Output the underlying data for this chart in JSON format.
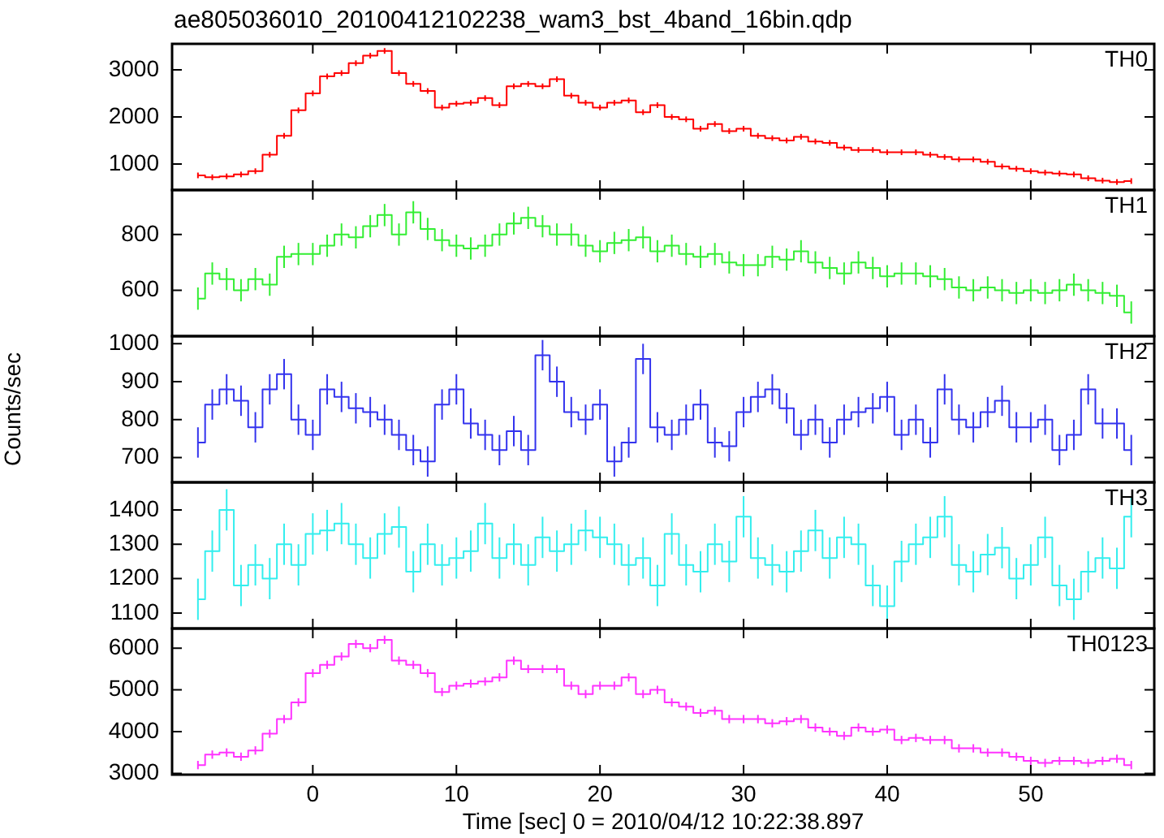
{
  "chart_data": [
    {
      "type": "step",
      "title": "ae805036010_20100412102238_wam3_bst_4band_16bin.qdp",
      "x": [
        -8,
        -7,
        -6,
        -5,
        -4,
        -3,
        -2,
        -1,
        0,
        1,
        2,
        3,
        4,
        5,
        6,
        7,
        8,
        9,
        10,
        11,
        12,
        13,
        14,
        15,
        16,
        17,
        18,
        19,
        20,
        21,
        22,
        23,
        24,
        25,
        26,
        27,
        28,
        29,
        30,
        31,
        32,
        33,
        34,
        35,
        36,
        37,
        38,
        39,
        40,
        41,
        42,
        43,
        44,
        45,
        46,
        47,
        48,
        49,
        50,
        51,
        52,
        53,
        54,
        55,
        56,
        57
      ],
      "xlim": [
        -9.8,
        58.6
      ],
      "xticks": [
        0,
        10,
        20,
        30,
        40,
        50
      ],
      "ylim": [
        450,
        3550
      ],
      "yticks": [
        1000,
        2000,
        3000
      ],
      "tick_labels": "y",
      "series": [
        {
          "name": "TH0",
          "color": "#ff0000",
          "values": [
            760,
            720,
            740,
            780,
            850,
            1200,
            1600,
            2140,
            2500,
            2860,
            2930,
            3140,
            3300,
            3400,
            2930,
            2700,
            2550,
            2200,
            2280,
            2300,
            2400,
            2250,
            2650,
            2700,
            2650,
            2800,
            2450,
            2300,
            2200,
            2300,
            2350,
            2100,
            2250,
            2000,
            1950,
            1750,
            1850,
            1700,
            1750,
            1600,
            1550,
            1500,
            1580,
            1480,
            1450,
            1350,
            1300,
            1300,
            1250,
            1250,
            1250,
            1200,
            1150,
            1100,
            1100,
            1050,
            950,
            900,
            850,
            820,
            800,
            780,
            700,
            650,
            620,
            640
          ],
          "errors": [
            60,
            60,
            60,
            60,
            60,
            60,
            60,
            60,
            60,
            60,
            60,
            60,
            60,
            60,
            60,
            60,
            60,
            60,
            60,
            60,
            60,
            60,
            60,
            60,
            60,
            60,
            60,
            60,
            60,
            60,
            60,
            60,
            60,
            60,
            60,
            60,
            60,
            60,
            60,
            60,
            60,
            60,
            60,
            60,
            60,
            60,
            60,
            60,
            60,
            60,
            60,
            60,
            60,
            60,
            60,
            60,
            60,
            60,
            60,
            60,
            60,
            60,
            60,
            60,
            60,
            60
          ]
        }
      ]
    },
    {
      "type": "step",
      "x": [
        -8,
        -7,
        -6,
        -5,
        -4,
        -3,
        -2,
        -1,
        0,
        1,
        2,
        3,
        4,
        5,
        6,
        7,
        8,
        9,
        10,
        11,
        12,
        13,
        14,
        15,
        16,
        17,
        18,
        19,
        20,
        21,
        22,
        23,
        24,
        25,
        26,
        27,
        28,
        29,
        30,
        31,
        32,
        33,
        34,
        35,
        36,
        37,
        38,
        39,
        40,
        41,
        42,
        43,
        44,
        45,
        46,
        47,
        48,
        49,
        50,
        51,
        52,
        53,
        54,
        55,
        56,
        57
      ],
      "xlim": [
        -9.8,
        58.6
      ],
      "xticks": [
        0,
        10,
        20,
        30,
        40,
        50
      ],
      "ylim": [
        435,
        960
      ],
      "yticks": [
        600,
        800
      ],
      "tick_labels": "y",
      "series": [
        {
          "name": "TH1",
          "color": "#33ee33",
          "values": [
            570,
            660,
            640,
            600,
            640,
            620,
            720,
            730,
            730,
            760,
            800,
            790,
            830,
            870,
            800,
            880,
            820,
            780,
            760,
            750,
            760,
            800,
            840,
            860,
            830,
            800,
            800,
            760,
            740,
            770,
            780,
            790,
            740,
            760,
            730,
            720,
            730,
            700,
            690,
            690,
            720,
            710,
            740,
            700,
            680,
            660,
            700,
            680,
            650,
            660,
            660,
            650,
            640,
            610,
            600,
            610,
            600,
            590,
            600,
            590,
            600,
            620,
            600,
            590,
            580,
            520
          ],
          "errors": [
            40,
            40,
            40,
            40,
            40,
            40,
            40,
            40,
            40,
            40,
            40,
            40,
            40,
            40,
            40,
            40,
            40,
            40,
            40,
            40,
            40,
            40,
            40,
            40,
            40,
            40,
            40,
            40,
            40,
            40,
            40,
            40,
            40,
            40,
            40,
            40,
            40,
            40,
            40,
            40,
            40,
            40,
            40,
            40,
            40,
            40,
            40,
            40,
            40,
            40,
            40,
            40,
            40,
            40,
            40,
            40,
            40,
            40,
            40,
            40,
            40,
            40,
            40,
            40,
            40,
            40
          ]
        }
      ]
    },
    {
      "type": "step",
      "ylabel": "Counts/sec",
      "x": [
        -8,
        -7,
        -6,
        -5,
        -4,
        -3,
        -2,
        -1,
        0,
        1,
        2,
        3,
        4,
        5,
        6,
        7,
        8,
        9,
        10,
        11,
        12,
        13,
        14,
        15,
        16,
        17,
        18,
        19,
        20,
        21,
        22,
        23,
        24,
        25,
        26,
        27,
        28,
        29,
        30,
        31,
        32,
        33,
        34,
        35,
        36,
        37,
        38,
        39,
        40,
        41,
        42,
        43,
        44,
        45,
        46,
        47,
        48,
        49,
        50,
        51,
        52,
        53,
        54,
        55,
        56,
        57
      ],
      "xlim": [
        -9.8,
        58.6
      ],
      "xticks": [
        0,
        10,
        20,
        30,
        40,
        50
      ],
      "ylim": [
        635,
        1020
      ],
      "yticks": [
        700,
        800,
        900,
        1000
      ],
      "tick_labels": "y",
      "series": [
        {
          "name": "TH2",
          "color": "#3333ee",
          "values": [
            740,
            840,
            880,
            850,
            780,
            880,
            920,
            800,
            760,
            880,
            860,
            830,
            820,
            800,
            760,
            720,
            690,
            840,
            880,
            790,
            760,
            720,
            770,
            720,
            970,
            900,
            820,
            800,
            840,
            690,
            740,
            960,
            780,
            760,
            800,
            840,
            740,
            730,
            820,
            860,
            880,
            830,
            760,
            800,
            740,
            800,
            820,
            830,
            860,
            760,
            800,
            740,
            880,
            800,
            780,
            820,
            850,
            780,
            780,
            800,
            720,
            760,
            880,
            790,
            790,
            720
          ],
          "errors": [
            40,
            40,
            40,
            40,
            40,
            40,
            40,
            40,
            40,
            40,
            40,
            40,
            40,
            40,
            40,
            40,
            40,
            40,
            40,
            40,
            40,
            40,
            40,
            40,
            40,
            40,
            40,
            40,
            40,
            40,
            40,
            40,
            40,
            40,
            40,
            40,
            40,
            40,
            40,
            40,
            40,
            40,
            40,
            40,
            40,
            40,
            40,
            40,
            40,
            40,
            40,
            40,
            40,
            40,
            40,
            40,
            40,
            40,
            40,
            40,
            40,
            40,
            40,
            40,
            40,
            40
          ]
        }
      ]
    },
    {
      "type": "step",
      "x": [
        -8,
        -7,
        -6,
        -5,
        -4,
        -3,
        -2,
        -1,
        0,
        1,
        2,
        3,
        4,
        5,
        6,
        7,
        8,
        9,
        10,
        11,
        12,
        13,
        14,
        15,
        16,
        17,
        18,
        19,
        20,
        21,
        22,
        23,
        24,
        25,
        26,
        27,
        28,
        29,
        30,
        31,
        32,
        33,
        34,
        35,
        36,
        37,
        38,
        39,
        40,
        41,
        42,
        43,
        44,
        45,
        46,
        47,
        48,
        49,
        50,
        51,
        52,
        53,
        54,
        55,
        56,
        57
      ],
      "xlim": [
        -9.8,
        58.6
      ],
      "xticks": [
        0,
        10,
        20,
        30,
        40,
        50
      ],
      "ylim": [
        1055,
        1480
      ],
      "yticks": [
        1100,
        1200,
        1300,
        1400
      ],
      "tick_labels": "y",
      "series": [
        {
          "name": "TH3",
          "color": "#33eeee",
          "values": [
            1140,
            1280,
            1400,
            1180,
            1240,
            1200,
            1300,
            1240,
            1330,
            1340,
            1360,
            1300,
            1260,
            1330,
            1350,
            1220,
            1300,
            1240,
            1260,
            1280,
            1360,
            1260,
            1300,
            1240,
            1320,
            1280,
            1300,
            1340,
            1320,
            1300,
            1240,
            1260,
            1180,
            1330,
            1240,
            1220,
            1300,
            1250,
            1380,
            1260,
            1240,
            1220,
            1280,
            1340,
            1260,
            1320,
            1300,
            1180,
            1120,
            1250,
            1300,
            1320,
            1380,
            1240,
            1220,
            1270,
            1290,
            1200,
            1240,
            1320,
            1180,
            1140,
            1220,
            1260,
            1230,
            1380
          ],
          "errors": [
            60,
            60,
            60,
            60,
            60,
            60,
            60,
            60,
            60,
            60,
            60,
            60,
            60,
            60,
            60,
            60,
            60,
            60,
            60,
            60,
            60,
            60,
            60,
            60,
            60,
            60,
            60,
            60,
            60,
            60,
            60,
            60,
            60,
            60,
            60,
            60,
            60,
            60,
            60,
            60,
            60,
            60,
            60,
            60,
            60,
            60,
            60,
            60,
            60,
            60,
            60,
            60,
            60,
            60,
            60,
            60,
            60,
            60,
            60,
            60,
            60,
            60,
            60,
            60,
            60,
            60
          ]
        }
      ]
    },
    {
      "type": "step",
      "xlabel": "Time [sec] 0 = 2010/04/12 10:22:38.897",
      "x": [
        -8,
        -7,
        -6,
        -5,
        -4,
        -3,
        -2,
        -1,
        0,
        1,
        2,
        3,
        4,
        5,
        6,
        7,
        8,
        9,
        10,
        11,
        12,
        13,
        14,
        15,
        16,
        17,
        18,
        19,
        20,
        21,
        22,
        23,
        24,
        25,
        26,
        27,
        28,
        29,
        30,
        31,
        32,
        33,
        34,
        35,
        36,
        37,
        38,
        39,
        40,
        41,
        42,
        43,
        44,
        45,
        46,
        47,
        48,
        49,
        50,
        51,
        52,
        53,
        54,
        55,
        56,
        57
      ],
      "xlim": [
        -9.8,
        58.6
      ],
      "xticks": [
        0,
        10,
        20,
        30,
        40,
        50
      ],
      "ylim": [
        2970,
        6470
      ],
      "yticks": [
        3000,
        4000,
        5000,
        6000
      ],
      "series": [
        {
          "name": "TH0123",
          "color": "#ff33ff",
          "values": [
            3200,
            3450,
            3500,
            3400,
            3550,
            3950,
            4300,
            4700,
            5400,
            5600,
            5800,
            6100,
            6000,
            6200,
            5700,
            5600,
            5400,
            4950,
            5100,
            5150,
            5200,
            5300,
            5700,
            5500,
            5500,
            5500,
            5100,
            4900,
            5100,
            5100,
            5300,
            4900,
            5000,
            4700,
            4600,
            4450,
            4500,
            4300,
            4300,
            4300,
            4200,
            4250,
            4300,
            4100,
            4000,
            3900,
            4100,
            4000,
            4050,
            3800,
            3850,
            3800,
            3800,
            3600,
            3600,
            3500,
            3500,
            3400,
            3300,
            3250,
            3300,
            3300,
            3250,
            3300,
            3350,
            3200
          ],
          "errors": [
            100,
            100,
            100,
            100,
            100,
            100,
            100,
            100,
            100,
            100,
            100,
            100,
            100,
            100,
            100,
            100,
            100,
            100,
            100,
            100,
            100,
            100,
            100,
            100,
            100,
            100,
            100,
            100,
            100,
            100,
            100,
            100,
            100,
            100,
            100,
            100,
            100,
            100,
            100,
            100,
            100,
            100,
            100,
            100,
            100,
            100,
            100,
            100,
            100,
            100,
            100,
            100,
            100,
            100,
            100,
            100,
            100,
            100,
            100,
            100,
            100,
            100,
            100,
            100,
            100,
            100
          ]
        }
      ]
    }
  ]
}
